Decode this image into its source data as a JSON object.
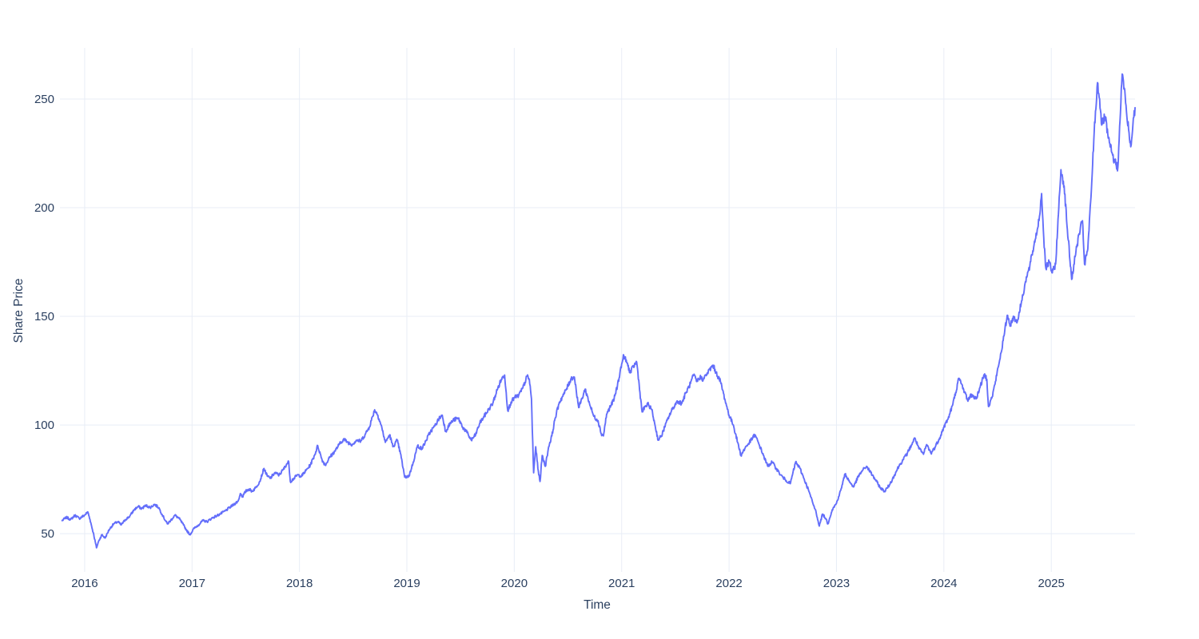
{
  "page": {
    "background": "#ffffff"
  },
  "colors": {
    "line": "#636efa",
    "grid": "#e8edf6",
    "text": "#2a3f5f",
    "plot_background": "#ffffff"
  },
  "chart_data": {
    "type": "line",
    "title": "",
    "xlabel": "Time",
    "ylabel": "Share Price",
    "grid": true,
    "legend": false,
    "x_ticks": [
      2016,
      2017,
      2018,
      2019,
      2020,
      2021,
      2022,
      2023,
      2024,
      2025
    ],
    "y_ticks": [
      50,
      100,
      150,
      200,
      250
    ],
    "x_range": [
      2015.77,
      2025.78
    ],
    "y_range": [
      32.4,
      273.5
    ],
    "series": [
      {
        "name": "Share Price",
        "color": "#636efa",
        "points": [
          [
            2015.79,
            56
          ],
          [
            2015.83,
            57.5
          ],
          [
            2015.87,
            56.5
          ],
          [
            2015.91,
            58.5
          ],
          [
            2015.95,
            57
          ],
          [
            2016.0,
            58.5
          ],
          [
            2016.03,
            60
          ],
          [
            2016.05,
            56.5
          ],
          [
            2016.08,
            50.5
          ],
          [
            2016.11,
            43.5
          ],
          [
            2016.13,
            46.5
          ],
          [
            2016.16,
            49.5
          ],
          [
            2016.19,
            48
          ],
          [
            2016.23,
            52
          ],
          [
            2016.27,
            54.5
          ],
          [
            2016.31,
            55.5
          ],
          [
            2016.34,
            54
          ],
          [
            2016.38,
            56.5
          ],
          [
            2016.42,
            58
          ],
          [
            2016.46,
            61
          ],
          [
            2016.5,
            62.5
          ],
          [
            2016.53,
            61.5
          ],
          [
            2016.57,
            63
          ],
          [
            2016.61,
            62
          ],
          [
            2016.65,
            63.5
          ],
          [
            2016.69,
            62
          ],
          [
            2016.73,
            58
          ],
          [
            2016.77,
            54.5
          ],
          [
            2016.8,
            56
          ],
          [
            2016.84,
            58.5
          ],
          [
            2016.88,
            57
          ],
          [
            2016.92,
            54
          ],
          [
            2016.95,
            51.5
          ],
          [
            2016.98,
            49.5
          ],
          [
            2017.02,
            52.5
          ],
          [
            2017.06,
            54
          ],
          [
            2017.1,
            56
          ],
          [
            2017.14,
            55.5
          ],
          [
            2017.18,
            57
          ],
          [
            2017.22,
            58
          ],
          [
            2017.26,
            59
          ],
          [
            2017.31,
            60.5
          ],
          [
            2017.35,
            62
          ],
          [
            2017.39,
            63.5
          ],
          [
            2017.43,
            65
          ],
          [
            2017.45,
            68.5
          ],
          [
            2017.47,
            67
          ],
          [
            2017.5,
            69.5
          ],
          [
            2017.53,
            70.5
          ],
          [
            2017.56,
            69.5
          ],
          [
            2017.59,
            71
          ],
          [
            2017.63,
            74
          ],
          [
            2017.67,
            80
          ],
          [
            2017.7,
            76.5
          ],
          [
            2017.73,
            75.5
          ],
          [
            2017.77,
            78
          ],
          [
            2017.81,
            77
          ],
          [
            2017.85,
            79.5
          ],
          [
            2017.88,
            82
          ],
          [
            2017.9,
            83
          ],
          [
            2017.915,
            74
          ],
          [
            2017.95,
            75.5
          ],
          [
            2017.98,
            77
          ],
          [
            2018.02,
            76.5
          ],
          [
            2018.06,
            79
          ],
          [
            2018.1,
            81.5
          ],
          [
            2018.14,
            86
          ],
          [
            2018.17,
            90.5
          ],
          [
            2018.21,
            84
          ],
          [
            2018.24,
            81.5
          ],
          [
            2018.28,
            85
          ],
          [
            2018.33,
            88
          ],
          [
            2018.37,
            91
          ],
          [
            2018.41,
            93.5
          ],
          [
            2018.45,
            92
          ],
          [
            2018.49,
            91
          ],
          [
            2018.53,
            93
          ],
          [
            2018.57,
            92.5
          ],
          [
            2018.61,
            95.5
          ],
          [
            2018.65,
            99
          ],
          [
            2018.7,
            107
          ],
          [
            2018.73,
            104.5
          ],
          [
            2018.76,
            100
          ],
          [
            2018.8,
            92
          ],
          [
            2018.84,
            95.5
          ],
          [
            2018.87,
            90
          ],
          [
            2018.91,
            93
          ],
          [
            2018.94,
            87
          ],
          [
            2018.98,
            76
          ],
          [
            2019.02,
            76.5
          ],
          [
            2019.06,
            83
          ],
          [
            2019.1,
            90.5
          ],
          [
            2019.14,
            89
          ],
          [
            2019.18,
            93
          ],
          [
            2019.22,
            97
          ],
          [
            2019.26,
            99.5
          ],
          [
            2019.3,
            103
          ],
          [
            2019.33,
            104.5
          ],
          [
            2019.36,
            97
          ],
          [
            2019.4,
            100.5
          ],
          [
            2019.44,
            102.5
          ],
          [
            2019.48,
            103
          ],
          [
            2019.52,
            99
          ],
          [
            2019.56,
            96.5
          ],
          [
            2019.6,
            93
          ],
          [
            2019.64,
            95.5
          ],
          [
            2019.68,
            101
          ],
          [
            2019.72,
            104
          ],
          [
            2019.76,
            107
          ],
          [
            2019.8,
            110
          ],
          [
            2019.84,
            116
          ],
          [
            2019.88,
            121
          ],
          [
            2019.91,
            123
          ],
          [
            2019.94,
            106.5
          ],
          [
            2019.97,
            110.5
          ],
          [
            2020.0,
            112.5
          ],
          [
            2020.04,
            113.5
          ],
          [
            2020.08,
            117
          ],
          [
            2020.12,
            122.5
          ],
          [
            2020.14,
            121
          ],
          [
            2020.16,
            112
          ],
          [
            2020.18,
            78
          ],
          [
            2020.2,
            90
          ],
          [
            2020.22,
            80
          ],
          [
            2020.24,
            74
          ],
          [
            2020.26,
            86
          ],
          [
            2020.29,
            81
          ],
          [
            2020.32,
            90
          ],
          [
            2020.35,
            95
          ],
          [
            2020.38,
            103
          ],
          [
            2020.42,
            110.5
          ],
          [
            2020.46,
            114
          ],
          [
            2020.5,
            118
          ],
          [
            2020.53,
            121.5
          ],
          [
            2020.56,
            122
          ],
          [
            2020.6,
            108
          ],
          [
            2020.63,
            112
          ],
          [
            2020.66,
            116.5
          ],
          [
            2020.7,
            110
          ],
          [
            2020.74,
            104
          ],
          [
            2020.78,
            102
          ],
          [
            2020.81,
            96
          ],
          [
            2020.83,
            95
          ],
          [
            2020.86,
            105
          ],
          [
            2020.9,
            109
          ],
          [
            2020.93,
            112
          ],
          [
            2020.96,
            118
          ],
          [
            2021.0,
            128
          ],
          [
            2021.02,
            132
          ],
          [
            2021.05,
            128.5
          ],
          [
            2021.08,
            124
          ],
          [
            2021.11,
            127
          ],
          [
            2021.14,
            129
          ],
          [
            2021.17,
            115
          ],
          [
            2021.19,
            106
          ],
          [
            2021.22,
            108.5
          ],
          [
            2021.25,
            109.5
          ],
          [
            2021.28,
            107
          ],
          [
            2021.31,
            100
          ],
          [
            2021.34,
            93
          ],
          [
            2021.37,
            95
          ],
          [
            2021.4,
            99
          ],
          [
            2021.44,
            104
          ],
          [
            2021.48,
            108
          ],
          [
            2021.52,
            111
          ],
          [
            2021.56,
            110
          ],
          [
            2021.6,
            115
          ],
          [
            2021.64,
            119
          ],
          [
            2021.67,
            123
          ],
          [
            2021.7,
            120
          ],
          [
            2021.73,
            122
          ],
          [
            2021.76,
            121
          ],
          [
            2021.8,
            124
          ],
          [
            2021.85,
            127.5
          ],
          [
            2021.88,
            124
          ],
          [
            2021.92,
            120
          ],
          [
            2021.96,
            112
          ],
          [
            2022.0,
            104.5
          ],
          [
            2022.04,
            100
          ],
          [
            2022.08,
            92
          ],
          [
            2022.11,
            86
          ],
          [
            2022.15,
            89.5
          ],
          [
            2022.19,
            92
          ],
          [
            2022.24,
            95.5
          ],
          [
            2022.28,
            91
          ],
          [
            2022.32,
            86
          ],
          [
            2022.36,
            81
          ],
          [
            2022.4,
            83
          ],
          [
            2022.44,
            80
          ],
          [
            2022.48,
            77
          ],
          [
            2022.52,
            75
          ],
          [
            2022.57,
            73
          ],
          [
            2022.62,
            83
          ],
          [
            2022.66,
            80
          ],
          [
            2022.7,
            75
          ],
          [
            2022.74,
            70
          ],
          [
            2022.78,
            64
          ],
          [
            2022.81,
            60
          ],
          [
            2022.84,
            53.5
          ],
          [
            2022.87,
            59
          ],
          [
            2022.9,
            57
          ],
          [
            2022.92,
            54.5
          ],
          [
            2022.96,
            61
          ],
          [
            2023.0,
            64
          ],
          [
            2023.04,
            70
          ],
          [
            2023.08,
            77.5
          ],
          [
            2023.12,
            74
          ],
          [
            2023.16,
            71.5
          ],
          [
            2023.2,
            76
          ],
          [
            2023.24,
            79
          ],
          [
            2023.28,
            81
          ],
          [
            2023.32,
            78
          ],
          [
            2023.36,
            75
          ],
          [
            2023.41,
            71
          ],
          [
            2023.45,
            69.5
          ],
          [
            2023.5,
            73
          ],
          [
            2023.54,
            77
          ],
          [
            2023.58,
            81
          ],
          [
            2023.62,
            84
          ],
          [
            2023.66,
            87
          ],
          [
            2023.7,
            91
          ],
          [
            2023.73,
            94
          ],
          [
            2023.77,
            89
          ],
          [
            2023.81,
            86.5
          ],
          [
            2023.84,
            91
          ],
          [
            2023.88,
            87
          ],
          [
            2023.92,
            90
          ],
          [
            2023.96,
            94
          ],
          [
            2024.0,
            99
          ],
          [
            2024.04,
            103
          ],
          [
            2024.08,
            109
          ],
          [
            2024.11,
            115
          ],
          [
            2024.14,
            121.5
          ],
          [
            2024.18,
            117
          ],
          [
            2024.22,
            111.5
          ],
          [
            2024.26,
            114
          ],
          [
            2024.3,
            112
          ],
          [
            2024.34,
            118
          ],
          [
            2024.38,
            123.5
          ],
          [
            2024.4,
            121
          ],
          [
            2024.415,
            108.5
          ],
          [
            2024.45,
            113
          ],
          [
            2024.48,
            120
          ],
          [
            2024.52,
            130
          ],
          [
            2024.56,
            141
          ],
          [
            2024.59,
            150.5
          ],
          [
            2024.62,
            146
          ],
          [
            2024.65,
            150
          ],
          [
            2024.68,
            147
          ],
          [
            2024.72,
            156
          ],
          [
            2024.76,
            166
          ],
          [
            2024.8,
            173
          ],
          [
            2024.84,
            183
          ],
          [
            2024.87,
            190
          ],
          [
            2024.89,
            196
          ],
          [
            2024.91,
            206.5
          ],
          [
            2024.93,
            186
          ],
          [
            2024.95,
            172
          ],
          [
            2024.98,
            175
          ],
          [
            2025.01,
            170
          ],
          [
            2025.04,
            174
          ],
          [
            2025.07,
            200
          ],
          [
            2025.09,
            217.5
          ],
          [
            2025.12,
            210
          ],
          [
            2025.15,
            190
          ],
          [
            2025.19,
            167
          ],
          [
            2025.23,
            180
          ],
          [
            2025.26,
            188
          ],
          [
            2025.29,
            194
          ],
          [
            2025.31,
            174
          ],
          [
            2025.34,
            181
          ],
          [
            2025.37,
            205
          ],
          [
            2025.4,
            235
          ],
          [
            2025.43,
            257.5
          ],
          [
            2025.45,
            250
          ],
          [
            2025.47,
            238
          ],
          [
            2025.5,
            242
          ],
          [
            2025.53,
            232
          ],
          [
            2025.56,
            226
          ],
          [
            2025.59,
            221
          ],
          [
            2025.62,
            218.5
          ],
          [
            2025.64,
            240
          ],
          [
            2025.66,
            261.5
          ],
          [
            2025.68,
            255
          ],
          [
            2025.7,
            244
          ],
          [
            2025.72,
            236
          ],
          [
            2025.74,
            228
          ],
          [
            2025.76,
            238
          ],
          [
            2025.78,
            246
          ]
        ]
      }
    ]
  }
}
